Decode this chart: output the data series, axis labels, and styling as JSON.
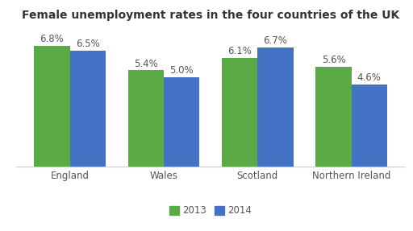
{
  "title": "Female unemployment rates in the four countries of the UK",
  "categories": [
    "England",
    "Wales",
    "Scotland",
    "Northern Ireland"
  ],
  "values_2013": [
    6.8,
    5.4,
    6.1,
    5.6
  ],
  "values_2014": [
    6.5,
    5.0,
    6.7,
    4.6
  ],
  "color_2013": "#5aaa46",
  "color_2014": "#4472c4",
  "legend_2013": "2013",
  "legend_2014": "2014",
  "ylim": [
    0,
    7.8
  ],
  "bar_width": 0.38,
  "title_fontsize": 10,
  "label_fontsize": 8.5,
  "tick_fontsize": 8.5,
  "legend_fontsize": 8.5,
  "background_color": "#ffffff",
  "label_color": "#555555",
  "tick_color": "#555555"
}
